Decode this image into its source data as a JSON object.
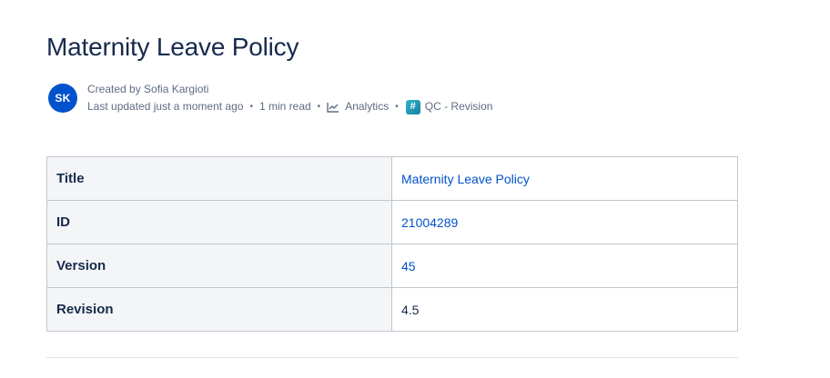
{
  "page": {
    "title": "Maternity Leave Policy"
  },
  "byline": {
    "avatar_initials": "SK",
    "created_by": "Created by Sofia Kargioti",
    "last_updated": "Last updated just a moment ago",
    "read_time": "1 min read",
    "analytics_label": "Analytics",
    "qc_label": "QC - Revision",
    "separator": "•"
  },
  "table": {
    "rows": [
      {
        "key": "Title",
        "value": "Maternity Leave Policy"
      },
      {
        "key": "ID",
        "value": "21004289"
      },
      {
        "key": "Version",
        "value": "45"
      },
      {
        "key": "Revision",
        "value": "4.5"
      }
    ]
  },
  "colors": {
    "avatar_bg": "#0052cc",
    "link": "#0052cc",
    "text": "#172b4d",
    "muted": "#5e6c84",
    "key_cell_bg": "#f4f5f7",
    "border": "#c1c7d0"
  },
  "icons": {
    "analytics": "analytics-icon",
    "qc": "qc-revision-icon"
  }
}
